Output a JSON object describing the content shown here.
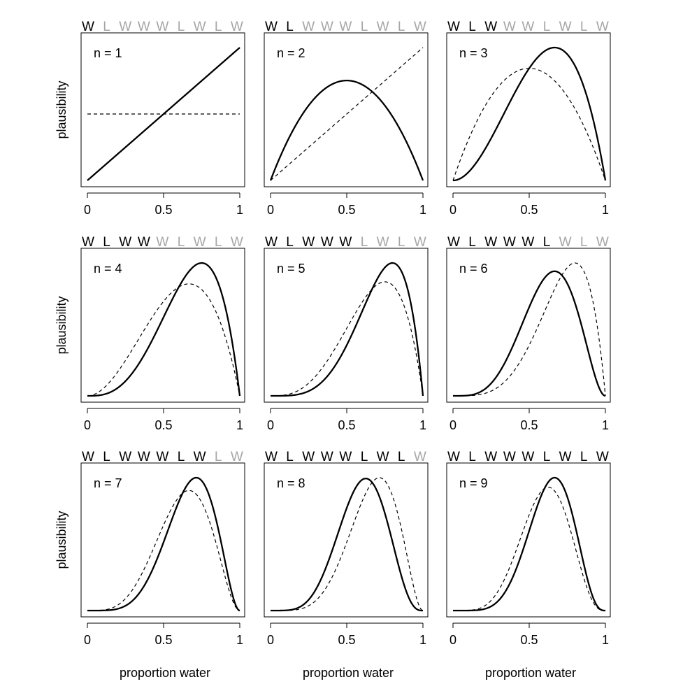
{
  "chart_data": {
    "type": "line",
    "sequence": [
      "W",
      "L",
      "W",
      "W",
      "W",
      "L",
      "W",
      "L",
      "W"
    ],
    "ylabel": "plausibility",
    "xlabel": "proportion water",
    "x_ticks": [
      "0",
      "0.5",
      "1"
    ],
    "xlim": [
      0,
      1
    ],
    "colors": {
      "observed": "#000000",
      "unobserved": "#a6a6a6",
      "line": "#000000",
      "frame": "#000000"
    },
    "panels": [
      {
        "label": "n = 1",
        "water": 1,
        "land": 0
      },
      {
        "label": "n = 2",
        "water": 1,
        "land": 1
      },
      {
        "label": "n = 3",
        "water": 2,
        "land": 1
      },
      {
        "label": "n = 4",
        "water": 3,
        "land": 1
      },
      {
        "label": "n = 5",
        "water": 4,
        "land": 1
      },
      {
        "label": "n = 6",
        "water": 4,
        "land": 2
      },
      {
        "label": "n = 7",
        "water": 5,
        "land": 2
      },
      {
        "label": "n = 8",
        "water": 5,
        "land": 3
      },
      {
        "label": "n = 9",
        "water": 6,
        "land": 3
      }
    ],
    "series": [
      {
        "style": "solid",
        "description_key": "posterior after n observations"
      },
      {
        "style": "dashed",
        "description_key": "posterior after n-1 observations"
      }
    ]
  }
}
